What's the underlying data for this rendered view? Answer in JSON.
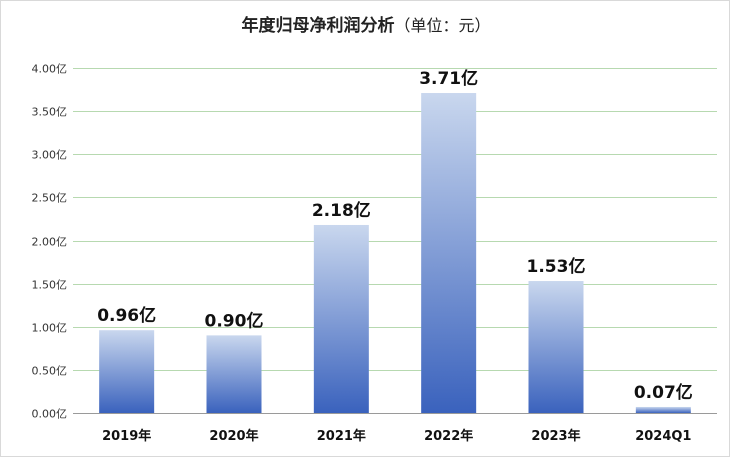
{
  "chart_data": {
    "type": "bar",
    "title": "年度归母净利润分析",
    "subtitle": "（单位：元）",
    "xlabel": "",
    "ylabel": "",
    "categories": [
      "2019年",
      "2020年",
      "2021年",
      "2022年",
      "2023年",
      "2024Q1"
    ],
    "values": [
      0.96,
      0.9,
      2.18,
      3.71,
      1.53,
      0.07
    ],
    "data_labels": [
      "0.96亿",
      "0.90亿",
      "2.18亿",
      "3.71亿",
      "1.53亿",
      "0.07亿"
    ],
    "ylim": [
      0,
      4.0
    ],
    "yticks": [
      0,
      0.5,
      1.0,
      1.5,
      2.0,
      2.5,
      3.0,
      3.5,
      4.0
    ],
    "ytick_labels": [
      "0.00亿",
      "0.50亿",
      "1.00亿",
      "1.50亿",
      "2.00亿",
      "2.50亿",
      "3.00亿",
      "3.50亿",
      "4.00亿"
    ],
    "grid": true,
    "legend": "none",
    "colors": {
      "bar_top": "#c9d7ee",
      "bar_bottom": "#3a62bd",
      "grid": "#b7d9b0"
    }
  }
}
